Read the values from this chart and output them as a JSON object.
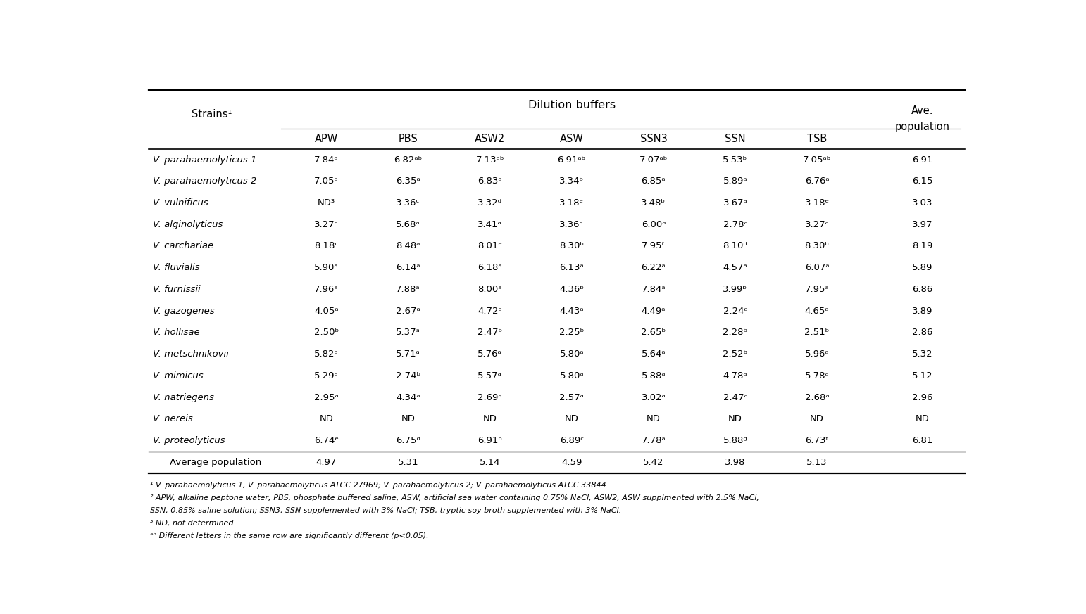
{
  "title": "Dilution buffers",
  "strains_header": "Strains¹",
  "ave_header_line1": "Ave.",
  "ave_header_line2": "population",
  "buffer_cols": [
    "APW",
    "PBS",
    "ASW2",
    "ASW",
    "SSN3",
    "SSN",
    "TSB"
  ],
  "strains": [
    "V. parahaemolyticus 1",
    "V. parahaemolyticus 2",
    "V. vulnificus",
    "V. alginolyticus",
    "V. carchariae",
    "V. fluvialis",
    "V. furnissii",
    "V. gazogenes",
    "V. hollisae",
    "V. metschnikovii",
    "V. mimicus",
    "V. natriegens",
    "V. nereis",
    "V. proteolyticus"
  ],
  "data": {
    "V. parahaemolyticus 1": [
      "7.84ᵃ",
      "6.82ᵃᵇ",
      "7.13ᵃᵇ",
      "6.91ᵃᵇ",
      "7.07ᵃᵇ",
      "5.53ᵇ",
      "7.05ᵃᵇ",
      "6.91"
    ],
    "V. parahaemolyticus 2": [
      "7.05ᵃ",
      "6.35ᵃ",
      "6.83ᵃ",
      "3.34ᵇ",
      "6.85ᵃ",
      "5.89ᵃ",
      "6.76ᵃ",
      "6.15"
    ],
    "V. vulnificus": [
      "ND³",
      "3.36ᶜ",
      "3.32ᵈ",
      "3.18ᵉ",
      "3.48ᵇ",
      "3.67ᵃ",
      "3.18ᵉ",
      "3.03"
    ],
    "V. alginolyticus": [
      "3.27ᵃ",
      "5.68ᵃ",
      "3.41ᵃ",
      "3.36ᵃ",
      "6.00ᵃ",
      "2.78ᵃ",
      "3.27ᵃ",
      "3.97"
    ],
    "V. carchariae": [
      "8.18ᶜ",
      "8.48ᵃ",
      "8.01ᵉ",
      "8.30ᵇ",
      "7.95ᶠ",
      "8.10ᵈ",
      "8.30ᵇ",
      "8.19"
    ],
    "V. fluvialis": [
      "5.90ᵃ",
      "6.14ᵃ",
      "6.18ᵃ",
      "6.13ᵃ",
      "6.22ᵃ",
      "4.57ᵃ",
      "6.07ᵃ",
      "5.89"
    ],
    "V. furnissii": [
      "7.96ᵃ",
      "7.88ᵃ",
      "8.00ᵃ",
      "4.36ᵇ",
      "7.84ᵃ",
      "3.99ᵇ",
      "7.95ᵃ",
      "6.86"
    ],
    "V. gazogenes": [
      "4.05ᵃ",
      "2.67ᵃ",
      "4.72ᵃ",
      "4.43ᵃ",
      "4.49ᵃ",
      "2.24ᵃ",
      "4.65ᵃ",
      "3.89"
    ],
    "V. hollisae": [
      "2.50ᵇ",
      "5.37ᵃ",
      "2.47ᵇ",
      "2.25ᵇ",
      "2.65ᵇ",
      "2.28ᵇ",
      "2.51ᵇ",
      "2.86"
    ],
    "V. metschnikovii": [
      "5.82ᵃ",
      "5.71ᵃ",
      "5.76ᵃ",
      "5.80ᵃ",
      "5.64ᵃ",
      "2.52ᵇ",
      "5.96ᵃ",
      "5.32"
    ],
    "V. mimicus": [
      "5.29ᵃ",
      "2.74ᵇ",
      "5.57ᵃ",
      "5.80ᵃ",
      "5.88ᵃ",
      "4.78ᵃ",
      "5.78ᵃ",
      "5.12"
    ],
    "V. natriegens": [
      "2.95ᵃ",
      "4.34ᵃ",
      "2.69ᵃ",
      "2.57ᵃ",
      "3.02ᵃ",
      "2.47ᵃ",
      "2.68ᵃ",
      "2.96"
    ],
    "V. nereis": [
      "ND",
      "ND",
      "ND",
      "ND",
      "ND",
      "ND",
      "ND",
      "ND"
    ],
    "V. proteolyticus": [
      "6.74ᵉ",
      "6.75ᵈ",
      "6.91ᵇ",
      "6.89ᶜ",
      "7.78ᵃ",
      "5.88ᵍ",
      "6.73ᶠ",
      "6.81"
    ]
  },
  "avg_row": [
    "4.97",
    "5.31",
    "5.14",
    "4.59",
    "5.42",
    "3.98",
    "5.13"
  ],
  "footnote1": "¹ V. parahaemolyticus 1, V. parahaemolyticus ATCC 27969; V. parahaemolyticus 2; V. parahaemolyticus ATCC 33844.",
  "footnote2": "² APW, alkaline peptone water; PBS, phosphate buffered saline; ASW, artificial sea water containing 0.75% NaCl; ASW2, ASW supplmented with 2.5% NaCl;",
  "footnote3": "SSN, 0.85% saline solution; SSN3, SSN supplemented with 3% NaCl; TSB, tryptic soy broth supplemented with 3% NaCl.",
  "footnote4": "³ ND, not determined.",
  "footnote5": "ᵃᵇ Different letters in the same row are significantly different (p<0.05).",
  "bg_color": "#ffffff"
}
